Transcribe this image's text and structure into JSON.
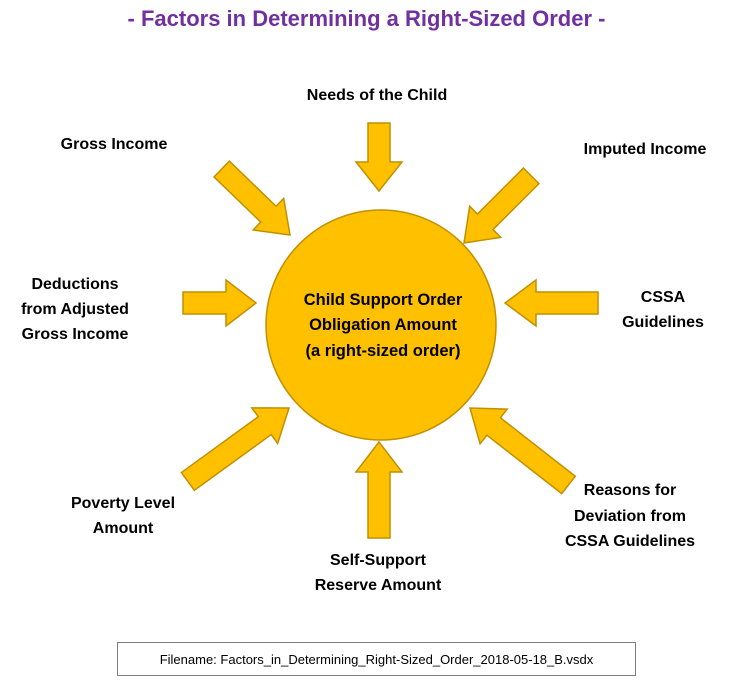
{
  "title": "- Factors in Determining a Right-Sized Order -",
  "center": {
    "line1": "Child Support Order",
    "line2": "Obligation Amount",
    "line3": "(a right-sized order)"
  },
  "factors": {
    "needs_of_child": "Needs of the Child",
    "gross_income": "Gross Income",
    "imputed_income": "Imputed Income",
    "deductions": [
      "Deductions",
      "from Adjusted",
      "Gross Income"
    ],
    "cssa_guidelines": [
      "CSSA",
      "Guidelines"
    ],
    "poverty_level": [
      "Poverty Level",
      "Amount"
    ],
    "self_support": [
      "Self-Support",
      "Reserve Amount"
    ],
    "reasons_deviation": [
      "Reasons for",
      "Deviation from",
      "CSSA Guidelines"
    ]
  },
  "filename_label": "Filename:  Factors_in_Determining_Right-Sized_Order_2018-05-18_B.vsdx",
  "colors": {
    "title": "#7030a0",
    "fill": "#ffc000",
    "stroke": "#c09000"
  }
}
